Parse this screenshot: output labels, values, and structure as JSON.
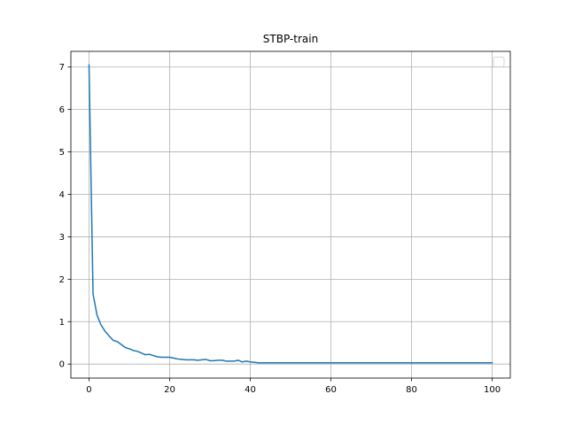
{
  "chart_data": {
    "type": "line",
    "title": "STBP-train",
    "xlabel": "",
    "ylabel": "",
    "xlim": [
      -4.5,
      104.5
    ],
    "ylim": [
      -0.33,
      7.37
    ],
    "xticks": [
      0,
      20,
      40,
      60,
      80,
      100
    ],
    "yticks": [
      0,
      1,
      2,
      3,
      4,
      5,
      6,
      7
    ],
    "grid": true,
    "legend": "top-right, empty",
    "series": [
      {
        "color": "#1f77b4",
        "x": [
          0,
          1,
          2,
          3,
          4,
          5,
          6,
          7,
          8,
          9,
          10,
          11,
          12,
          13,
          14,
          15,
          16,
          17,
          18,
          19,
          20,
          21,
          22,
          23,
          24,
          25,
          26,
          27,
          28,
          29,
          30,
          31,
          32,
          33,
          34,
          35,
          36,
          37,
          38,
          39,
          40,
          41,
          42,
          43,
          44,
          45,
          46,
          47,
          48,
          49,
          50,
          51,
          52,
          53,
          54,
          55,
          56,
          57,
          58,
          59,
          60,
          61,
          62,
          63,
          64,
          65,
          66,
          67,
          68,
          69,
          70,
          71,
          72,
          73,
          74,
          75,
          76,
          77,
          78,
          79,
          80,
          81,
          82,
          83,
          84,
          85,
          86,
          87,
          88,
          89,
          90,
          91,
          92,
          93,
          94,
          95,
          96,
          97,
          98,
          99,
          100
        ],
        "values": [
          7.05,
          1.65,
          1.15,
          0.92,
          0.77,
          0.66,
          0.56,
          0.53,
          0.46,
          0.39,
          0.36,
          0.32,
          0.3,
          0.26,
          0.22,
          0.23,
          0.2,
          0.17,
          0.16,
          0.16,
          0.16,
          0.14,
          0.12,
          0.11,
          0.1,
          0.1,
          0.1,
          0.09,
          0.1,
          0.11,
          0.08,
          0.08,
          0.09,
          0.09,
          0.07,
          0.07,
          0.07,
          0.09,
          0.05,
          0.07,
          0.05,
          0.04,
          0.03,
          0.03,
          0.03,
          0.03,
          0.03,
          0.03,
          0.03,
          0.03,
          0.03,
          0.03,
          0.03,
          0.03,
          0.03,
          0.03,
          0.03,
          0.03,
          0.03,
          0.03,
          0.03,
          0.03,
          0.03,
          0.03,
          0.03,
          0.03,
          0.03,
          0.03,
          0.03,
          0.03,
          0.03,
          0.03,
          0.03,
          0.03,
          0.03,
          0.03,
          0.03,
          0.03,
          0.03,
          0.03,
          0.03,
          0.03,
          0.03,
          0.03,
          0.03,
          0.03,
          0.03,
          0.03,
          0.03,
          0.03,
          0.03,
          0.03,
          0.03,
          0.03,
          0.03,
          0.03,
          0.03,
          0.03,
          0.03,
          0.03,
          0.03
        ]
      }
    ]
  }
}
